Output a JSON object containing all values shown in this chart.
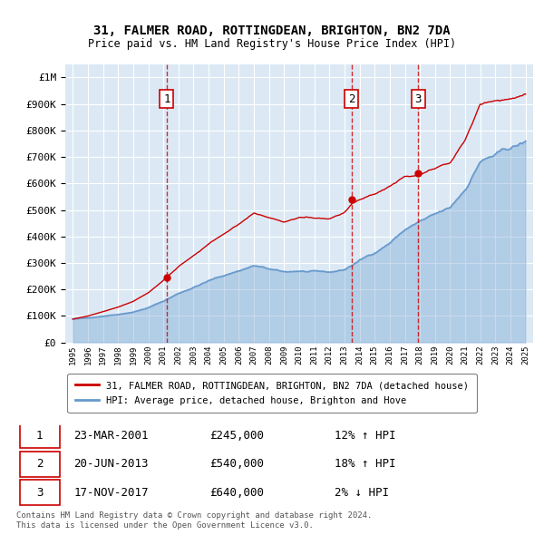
{
  "title1": "31, FALMER ROAD, ROTTINGDEAN, BRIGHTON, BN2 7DA",
  "title2": "Price paid vs. HM Land Registry's House Price Index (HPI)",
  "background_color": "#ffffff",
  "plot_bg_color": "#dce9f5",
  "grid_color": "#ffffff",
  "sale_dates": [
    2001.22,
    2013.47,
    2017.89
  ],
  "sale_prices": [
    245000,
    540000,
    640000
  ],
  "sale_labels": [
    "1",
    "2",
    "3"
  ],
  "legend_label_red": "31, FALMER ROAD, ROTTINGDEAN, BRIGHTON, BN2 7DA (detached house)",
  "legend_label_blue": "HPI: Average price, detached house, Brighton and Hove",
  "table_rows": [
    [
      "1",
      "23-MAR-2001",
      "£245,000",
      "12% ↑ HPI"
    ],
    [
      "2",
      "20-JUN-2013",
      "£540,000",
      "18% ↑ HPI"
    ],
    [
      "3",
      "17-NOV-2017",
      "£640,000",
      "2% ↓ HPI"
    ]
  ],
  "footer1": "Contains HM Land Registry data © Crown copyright and database right 2024.",
  "footer2": "This data is licensed under the Open Government Licence v3.0.",
  "red_color": "#cc0000",
  "blue_color": "#6699cc",
  "ylim_max": 1050000,
  "xlim_min": 1994.5,
  "xlim_max": 2025.5,
  "years_hpi": [
    1995,
    1996,
    1997,
    1998,
    1999,
    2000,
    2001,
    2002,
    2003,
    2004,
    2005,
    2006,
    2007,
    2008,
    2009,
    2010,
    2011,
    2012,
    2013,
    2014,
    2015,
    2016,
    2017,
    2018,
    2019,
    2020,
    2021,
    2022,
    2023,
    2024,
    2025
  ],
  "hpi_values": [
    88000,
    92000,
    100000,
    108000,
    118000,
    135000,
    160000,
    190000,
    215000,
    240000,
    260000,
    280000,
    300000,
    285000,
    270000,
    275000,
    270000,
    265000,
    275000,
    310000,
    340000,
    380000,
    430000,
    460000,
    480000,
    500000,
    570000,
    680000,
    700000,
    720000,
    740000
  ]
}
